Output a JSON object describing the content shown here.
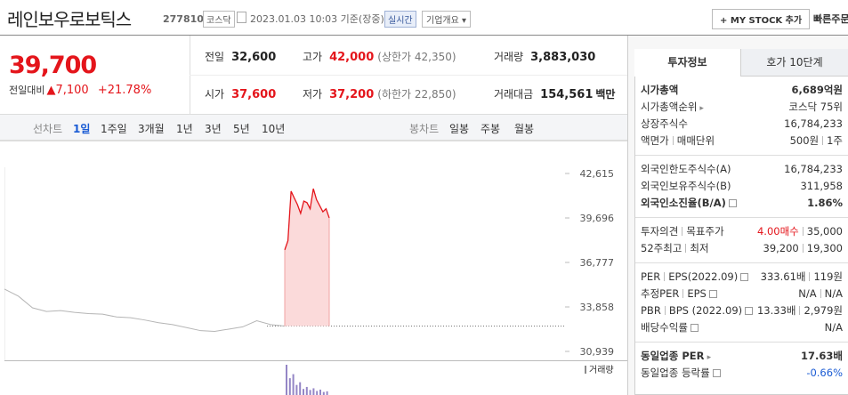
{
  "header": {
    "name": "레인보우로보틱스",
    "code": "277810",
    "market": "코스닥",
    "timestamp": "2023.01.03 10:03 기준(장중)",
    "realtime": "실시간",
    "company_info": "기업개요",
    "my_stock": "MY STOCK 추가",
    "quick_order": "빠른주문"
  },
  "quote": {
    "price": "39,700",
    "change_label": "전일대비",
    "change": "7,100",
    "change_rate": "+21.78%",
    "stats": [
      {
        "label": "전일",
        "value": "32,600"
      },
      {
        "label": "고가",
        "value": "42,000",
        "note": "(상한가 42,350)"
      },
      {
        "label": "거래량",
        "value": "3,883,030"
      },
      {
        "label": "시가",
        "value": "37,600"
      },
      {
        "label": "저가",
        "value": "37,200",
        "note": "(하한가 22,850)"
      },
      {
        "label": "거래대금",
        "value": "154,561",
        "unit": "백만"
      }
    ]
  },
  "tabs": {
    "line_label": "선차트",
    "line_periods": [
      "1일",
      "1주일",
      "3개월",
      "1년",
      "3년",
      "5년",
      "10년"
    ],
    "candle_label": "봉차트",
    "candle_periods": [
      "일봉",
      "주봉",
      "월봉"
    ]
  },
  "chart": {
    "type": "line",
    "ylim": [
      30355,
      44775
    ],
    "yticks": [
      {
        "value": 42615,
        "label": "42,615"
      },
      {
        "value": 39696,
        "label": "39,696"
      },
      {
        "value": 36777,
        "label": "36,777"
      },
      {
        "value": 33858,
        "label": "33,858"
      },
      {
        "value": 30939,
        "label": "30,939"
      }
    ],
    "previous_close": 32600,
    "series": [
      {
        "color": "#b5b5b5",
        "values": [
          35030,
          34560,
          33800,
          33560,
          33620,
          33500,
          33420,
          33380,
          33200,
          33150,
          33000,
          32820,
          32700,
          32500,
          32300,
          32250,
          32400,
          32550,
          32950,
          32700,
          32600
        ]
      },
      {
        "color": "#e4151b",
        "values": [
          37600,
          38200,
          41450,
          41000,
          40570,
          40000,
          40800,
          40700,
          40300,
          41620,
          40900,
          40500,
          40100,
          40300,
          39700
        ]
      }
    ],
    "volume": {
      "label": "거래량",
      "color": "#9486c6",
      "values": [
        900000,
        500000,
        620000,
        300000,
        380000,
        180000,
        240000,
        150000,
        200000,
        120000,
        160000,
        90000,
        110000
      ]
    }
  },
  "info": {
    "tabs": [
      "투자정보",
      "호가 10단계"
    ],
    "groups": [
      [
        {
          "label": [
            "시가총액"
          ],
          "values": [
            {
              "text": "6,689억원"
            }
          ],
          "bold": true
        },
        {
          "label": [
            "시가총액순위"
          ],
          "link": true,
          "values": [
            {
              "text": "코스닥 75위"
            }
          ]
        },
        {
          "label": [
            "상장주식수"
          ],
          "values": [
            {
              "text": "16,784,233"
            }
          ]
        },
        {
          "label": [
            "액면가",
            "매매단위"
          ],
          "values": [
            {
              "text": "500원"
            },
            {
              "text": "1주"
            }
          ]
        }
      ],
      [
        {
          "label": [
            "외국인한도주식수(A)"
          ],
          "values": [
            {
              "text": "16,784,233"
            }
          ]
        },
        {
          "label": [
            "외국인보유주식수(B)"
          ],
          "values": [
            {
              "text": "311,958"
            }
          ]
        },
        {
          "label": [
            "외국인소진율(B/A)"
          ],
          "help": true,
          "values": [
            {
              "text": "1.86%"
            }
          ],
          "bold": true
        }
      ],
      [
        {
          "label": [
            "투자의견",
            "목표주가"
          ],
          "values": [
            {
              "text": "4.00매수",
              "color": "#e4151b"
            },
            {
              "text": "35,000"
            }
          ]
        },
        {
          "label": [
            "52주최고",
            "최저"
          ],
          "values": [
            {
              "text": "39,200"
            },
            {
              "text": "19,300"
            }
          ]
        }
      ],
      [
        {
          "label": [
            "PER",
            "EPS(2022.09)"
          ],
          "help": true,
          "values": [
            {
              "text": "333.61배"
            },
            {
              "text": "119원"
            }
          ]
        },
        {
          "label": [
            "추정PER",
            "EPS"
          ],
          "help": true,
          "values": [
            {
              "text": "N/A"
            },
            {
              "text": "N/A"
            }
          ]
        },
        {
          "label": [
            "PBR",
            "BPS (2022.09)"
          ],
          "help": true,
          "values": [
            {
              "text": "13.33배"
            },
            {
              "text": "2,979원"
            }
          ]
        },
        {
          "label": [
            "배당수익률"
          ],
          "help": true,
          "values": [
            {
              "text": "N/A"
            }
          ]
        }
      ],
      [
        {
          "label": [
            "동일업종 PER"
          ],
          "link": true,
          "values": [
            {
              "text": "17.63배"
            }
          ],
          "bold": true
        },
        {
          "label": [
            "동일업종 등락률"
          ],
          "help": true,
          "values": [
            {
              "text": "-0.66%",
              "color": "#1a5bd4"
            }
          ]
        }
      ]
    ]
  }
}
